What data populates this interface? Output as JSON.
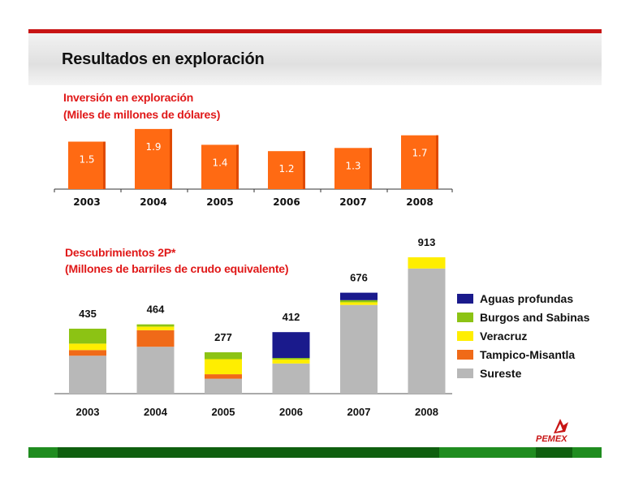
{
  "slide": {
    "title": "Resultados en exploración"
  },
  "colors": {
    "bar_orange": "#ff6a13",
    "bar_orange_dark": "#e04a00",
    "sureste": "#b8b8b8",
    "tampico": "#f06a18",
    "veracruz": "#ffee00",
    "burgos": "#8cc314",
    "aguas": "#1a1a8c",
    "heading_red": "#e01818",
    "pemex_red": "#c81414",
    "pemex_green": "#1f8c1f"
  },
  "logo": {
    "text": "PEMEX",
    "icon": "pemex-eagle-icon"
  },
  "chart_data": [
    {
      "type": "bar",
      "title": "Inversión en exploración",
      "subtitle": "(Miles de millones de dólares)",
      "categories": [
        "2003",
        "2004",
        "2005",
        "2006",
        "2007",
        "2008"
      ],
      "values": [
        1.5,
        1.9,
        1.4,
        1.2,
        1.3,
        1.7
      ],
      "data_labels": [
        "1.5",
        "1.9",
        "1.4",
        "1.2",
        "1.3",
        "1.7"
      ],
      "ylim": [
        0,
        2.0
      ],
      "grid": false,
      "legend": "none"
    },
    {
      "type": "bar",
      "stacked": true,
      "title": "Descubrimientos 2P*",
      "subtitle": "(Millones de barriles de crudo equivalente)",
      "categories": [
        "2003",
        "2004",
        "2005",
        "2006",
        "2007",
        "2008"
      ],
      "totals": [
        435,
        464,
        277,
        412,
        676,
        913
      ],
      "total_labels": [
        "435",
        "464",
        "277",
        "412",
        "676",
        "913"
      ],
      "series": [
        {
          "name": "Sureste",
          "values": [
            254,
            314,
            100,
            202,
            594,
            838
          ]
        },
        {
          "name": "Tampico-Misantla",
          "values": [
            38,
            111,
            30,
            0,
            0,
            0
          ]
        },
        {
          "name": "Veracruz",
          "values": [
            43,
            24,
            101,
            27,
            18,
            75
          ]
        },
        {
          "name": "Burgos and Sabinas",
          "values": [
            100,
            15,
            46,
            10,
            14,
            0
          ]
        },
        {
          "name": "Aguas profundas",
          "values": [
            0,
            0,
            0,
            173,
            50,
            0
          ]
        }
      ],
      "legend_order": [
        "Aguas profundas",
        "Burgos and Sabinas",
        "Veracruz",
        "Tampico-Misantla",
        "Sureste"
      ],
      "ylim": [
        0,
        913
      ],
      "grid": false,
      "legend": "right"
    }
  ]
}
